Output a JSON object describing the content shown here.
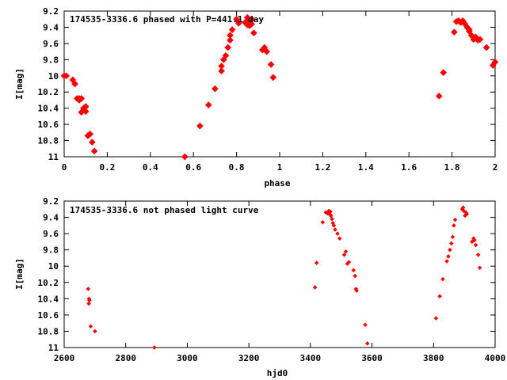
{
  "colors": {
    "points": "#ff0000",
    "axes": "#000000",
    "background": "#ffffff"
  },
  "chart_data": [
    {
      "type": "scatter",
      "title": "174535-3336.6 phased with P=441.1 day",
      "xlabel": "phase",
      "ylabel": "I[mag]",
      "xlim": [
        0,
        2
      ],
      "ylim": [
        11,
        9.2
      ],
      "y_inverted": true,
      "grid": false,
      "xticks": [
        "0",
        "0.2",
        "0.4",
        "0.6",
        "0.8",
        "1",
        "1.2",
        "1.4",
        "1.6",
        "1.8",
        "2"
      ],
      "yticks": [
        "9.2",
        "9.4",
        "9.6",
        "9.8",
        "10",
        "10.2",
        "10.4",
        "10.6",
        "10.8",
        "11"
      ],
      "series": [
        {
          "x": [
            0.0,
            0.01,
            0.04,
            0.05,
            0.06,
            0.07,
            0.07,
            0.08,
            0.08,
            0.09,
            0.1,
            0.1,
            0.11,
            0.12,
            0.13,
            0.14,
            0.56,
            0.63,
            0.67,
            0.7,
            0.73,
            0.73,
            0.74,
            0.75,
            0.76,
            0.77,
            0.77,
            0.78,
            0.8,
            0.81,
            0.84,
            0.85,
            0.85,
            0.86,
            0.86,
            0.87,
            0.87,
            0.88,
            0.92,
            0.93,
            0.94,
            0.96,
            0.97,
            1.74,
            1.76,
            1.81,
            1.82,
            1.83,
            1.84,
            1.85,
            1.86,
            1.87,
            1.88,
            1.88,
            1.89,
            1.9,
            1.91,
            1.92,
            1.93,
            1.96,
            1.99,
            2.0
          ],
          "y": [
            10.0,
            10.0,
            10.05,
            10.1,
            10.28,
            10.28,
            10.3,
            10.28,
            10.45,
            10.4,
            10.38,
            10.44,
            10.74,
            10.72,
            10.82,
            10.93,
            11.0,
            10.62,
            10.36,
            10.16,
            9.94,
            9.88,
            9.8,
            9.75,
            9.65,
            9.5,
            9.56,
            9.43,
            9.3,
            9.35,
            9.34,
            9.28,
            9.37,
            9.32,
            9.38,
            9.3,
            9.36,
            9.47,
            9.68,
            9.65,
            9.7,
            9.86,
            10.02,
            10.25,
            9.96,
            9.46,
            9.33,
            9.32,
            9.34,
            9.32,
            9.36,
            9.4,
            9.43,
            9.45,
            9.5,
            9.55,
            9.52,
            9.56,
            9.55,
            9.65,
            9.87,
            9.83
          ]
        }
      ]
    },
    {
      "type": "scatter",
      "title": "174535-3336.6 not phased light curve",
      "xlabel": "hjd0",
      "ylabel": "I[mag]",
      "xlim": [
        2600,
        4000
      ],
      "ylim": [
        11,
        9.2
      ],
      "y_inverted": true,
      "grid": false,
      "xticks": [
        "2600",
        "2800",
        "3000",
        "3200",
        "3400",
        "3600",
        "3800",
        "4000"
      ],
      "yticks": [
        "9.2",
        "9.4",
        "9.6",
        "9.8",
        "10",
        "10.2",
        "10.4",
        "10.6",
        "10.8",
        "11"
      ],
      "series": [
        {
          "x": [
            2678,
            2680,
            2681,
            2682,
            2686,
            2700,
            2893,
            3415,
            3420,
            3440,
            3450,
            3455,
            3460,
            3462,
            3465,
            3467,
            3470,
            3473,
            3476,
            3480,
            3488,
            3495,
            3510,
            3515,
            3520,
            3525,
            3540,
            3545,
            3548,
            3550,
            3578,
            3585,
            3808,
            3820,
            3830,
            3843,
            3848,
            3853,
            3858,
            3862,
            3866,
            3870,
            3893,
            3896,
            3898,
            3902,
            3905,
            3908,
            3925,
            3930,
            3933,
            3937,
            3945,
            3950
          ],
          "y": [
            10.28,
            10.46,
            10.4,
            10.42,
            10.74,
            10.8,
            11.0,
            10.26,
            9.96,
            9.46,
            9.34,
            9.35,
            9.32,
            9.36,
            9.33,
            9.38,
            9.42,
            9.47,
            9.5,
            9.55,
            9.6,
            9.66,
            9.86,
            9.82,
            9.97,
            9.95,
            10.05,
            10.12,
            10.28,
            10.3,
            10.72,
            10.95,
            10.64,
            10.37,
            10.16,
            9.94,
            9.88,
            9.8,
            9.72,
            9.64,
            9.5,
            9.43,
            9.3,
            9.28,
            9.32,
            9.38,
            9.34,
            9.36,
            9.7,
            9.66,
            9.68,
            9.74,
            9.86,
            10.02
          ]
        }
      ]
    }
  ]
}
